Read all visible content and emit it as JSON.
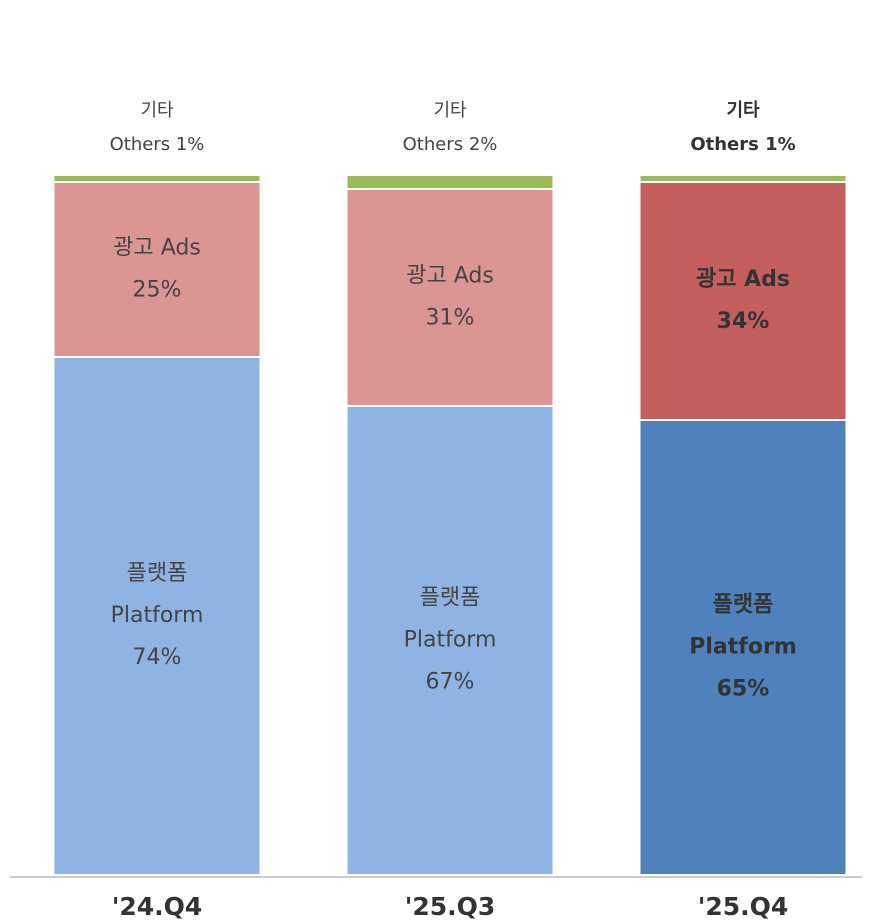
{
  "chart_data": {
    "type": "stacked_bar",
    "categories": [
      "'24.Q4",
      "'25.Q3",
      "'25.Q4"
    ],
    "series": [
      {
        "name": "Platform",
        "name_ko": "플랫폼",
        "colors": [
          "#8fb3e2",
          "#8fb3e2",
          "#4f81bd"
        ],
        "values": [
          74,
          67,
          65
        ],
        "value_labels": [
          "74%",
          "67%",
          "65%"
        ]
      },
      {
        "name": "Ads",
        "name_ko": "광고",
        "colors": [
          "#db9593",
          "#db9593",
          "#c55f5d"
        ],
        "values": [
          25,
          31,
          34
        ],
        "value_labels": [
          "25%",
          "31%",
          "34%"
        ]
      },
      {
        "name": "Others",
        "name_ko": "기타",
        "colors": [
          "#9bbb59",
          "#9bbb59",
          "#9bbb59"
        ],
        "values": [
          1,
          2,
          1
        ],
        "value_labels": [
          "1%",
          "2%",
          "1%"
        ]
      }
    ]
  }
}
